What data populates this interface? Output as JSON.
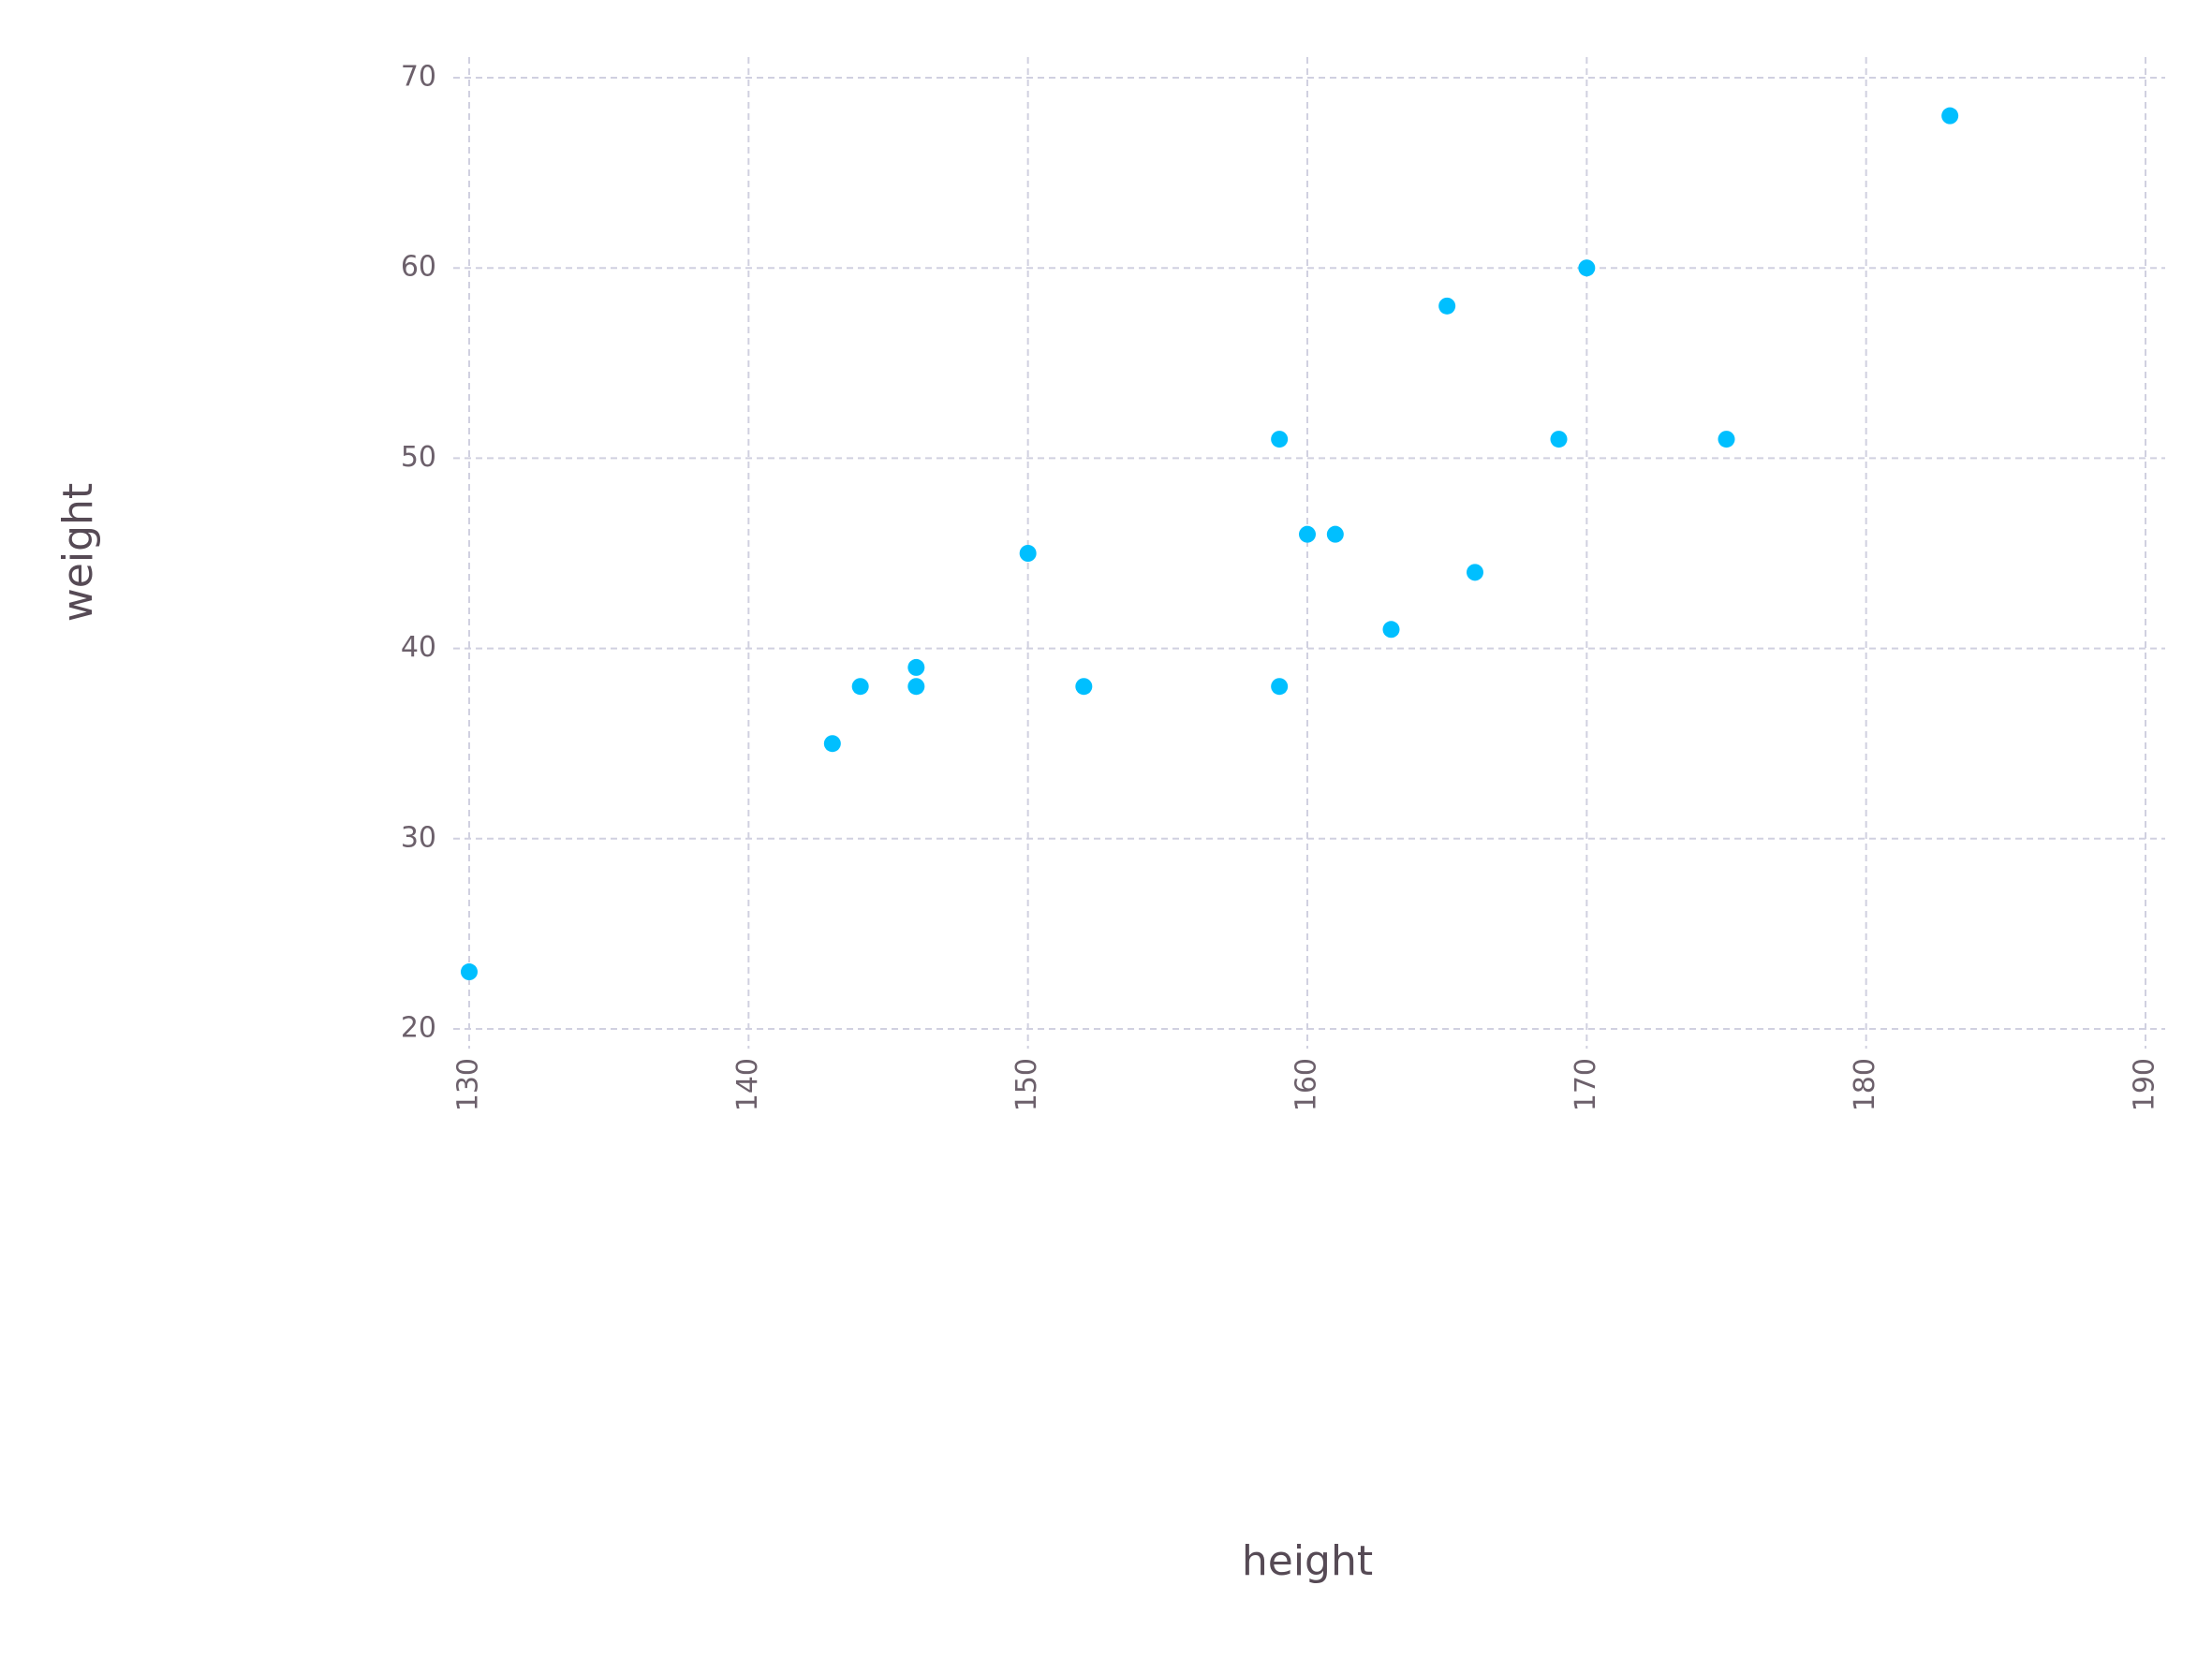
{
  "chart_data": {
    "type": "scatter",
    "x_label": "height",
    "y_label": "weight",
    "x": [
      130,
      143,
      144,
      146,
      146,
      150,
      152,
      159,
      159,
      160,
      161,
      163,
      165,
      166,
      169,
      170,
      175,
      183
    ],
    "series": [
      {
        "color": "#00bfff",
        "values": [
          23,
          35,
          38,
          38,
          39,
          45,
          38,
          51,
          38,
          46,
          46,
          41,
          58,
          44,
          51,
          60,
          51,
          68
        ]
      }
    ],
    "xlim": [
      130,
      190
    ],
    "ylim": [
      20,
      70
    ],
    "xticks": [
      130,
      140,
      150,
      160,
      170,
      180,
      190
    ],
    "yticks": [
      20,
      30,
      40,
      50,
      60,
      70
    ],
    "grid": true
  }
}
